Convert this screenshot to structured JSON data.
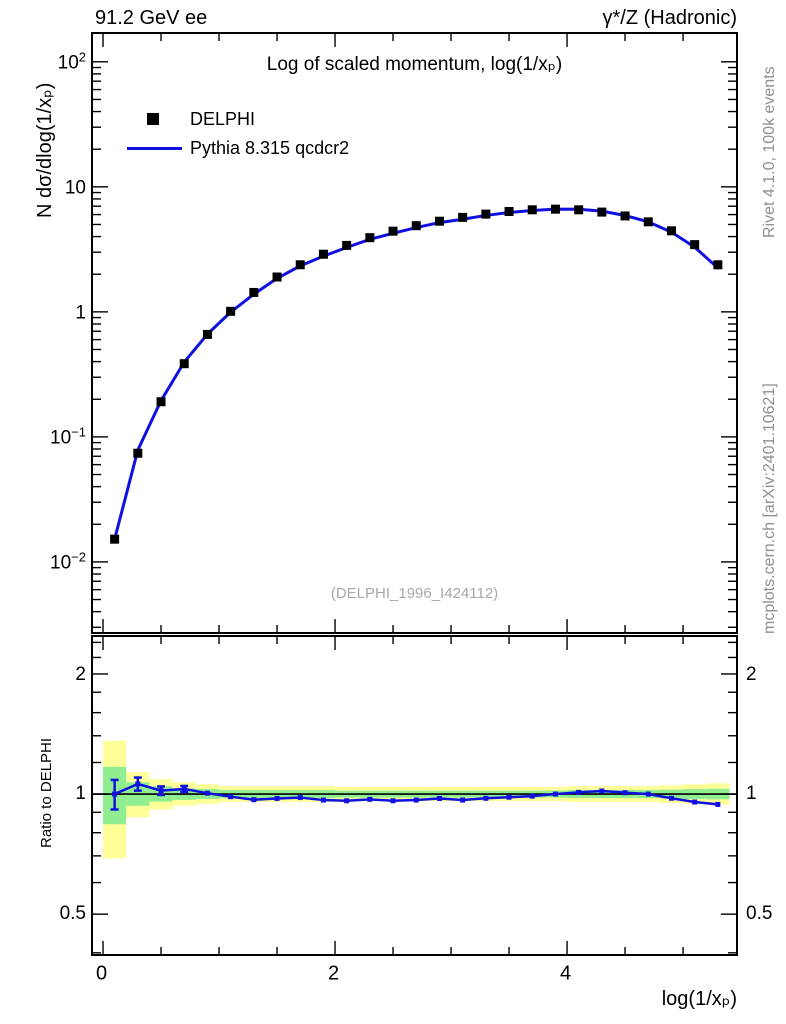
{
  "header": {
    "left": "91.2 GeV ee",
    "right": "γ*/Z (Hadronic)"
  },
  "title": "Log of scaled momentum, log(1/xₚ)",
  "watermark": "(DELPHI_1996_I424112)",
  "sidebar": {
    "top": "Rivet 4.1.0,  100k events",
    "bottom": "mcplots.cern.ch [arXiv:2401.10621]"
  },
  "legend": {
    "items": [
      {
        "label": "DELPHI",
        "style": "marker"
      },
      {
        "label": "Pythia 8.315 qcdcr2",
        "style": "line"
      }
    ]
  },
  "axes": {
    "main_y_label": "N  dσ/dlog(1/xₚ)",
    "main_y_ticks": [
      {
        "base": "10",
        "exp": "2"
      },
      {
        "base": "10",
        "exp": ""
      },
      {
        "base": "1",
        "exp": ""
      },
      {
        "base": "10",
        "exp": "−1"
      },
      {
        "base": "10",
        "exp": "−2"
      }
    ],
    "ratio_y_label": "Ratio to DELPHI",
    "ratio_y_ticks": [
      "2",
      "1",
      "0.5"
    ],
    "x_ticks": [
      "0",
      "2",
      "4"
    ],
    "x_label": "log(1/xₚ)"
  },
  "colors": {
    "model_line": "#1010e0",
    "data_marker": "#000000",
    "band_outer": "#ffff99",
    "band_inner": "#90ee90",
    "frame": "#000000",
    "sidebar_text": "#8f8f8f",
    "watermark_text": "#a8a8a8"
  },
  "chart_data": {
    "type": "line",
    "title": "Log of scaled momentum, log(1/xₚ)",
    "xlabel": "log(1/xₚ)",
    "ylabel": "N dσ/dlog(1/xₚ)",
    "x_range": [
      -0.095,
      5.465
    ],
    "y_range_log": [
      0.0027,
      170
    ],
    "x_major_ticks": [
      0,
      2,
      4
    ],
    "x_minor_ticks": [
      0.5,
      1,
      1.5,
      2.5,
      3,
      3.5,
      4.5,
      5
    ],
    "bin_width": 0.2,
    "x": [
      0.1,
      0.3,
      0.5,
      0.7,
      0.9,
      1.1,
      1.3,
      1.5,
      1.7,
      1.9,
      2.1,
      2.3,
      2.5,
      2.7,
      2.9,
      3.1,
      3.3,
      3.5,
      3.7,
      3.9,
      4.1,
      4.3,
      4.5,
      4.7,
      4.9,
      5.1,
      5.3
    ],
    "series": [
      {
        "name": "DELPHI",
        "style": "squares",
        "color": "#000000",
        "values": [
          0.0152,
          0.074,
          0.191,
          0.385,
          0.66,
          1.01,
          1.43,
          1.9,
          2.38,
          2.89,
          3.4,
          3.92,
          4.42,
          4.89,
          5.31,
          5.7,
          6.05,
          6.35,
          6.55,
          6.63,
          6.55,
          6.28,
          5.85,
          5.25,
          4.45,
          3.45,
          2.38
        ]
      },
      {
        "name": "Pythia 8.315 qcdcr2",
        "style": "line",
        "color": "#1010e0",
        "ratio_to_ref": [
          1.0,
          1.06,
          1.02,
          1.03,
          1.005,
          0.985,
          0.968,
          0.975,
          0.98,
          0.966,
          0.962,
          0.97,
          0.962,
          0.966,
          0.975,
          0.966,
          0.976,
          0.982,
          0.988,
          1.0,
          1.01,
          1.018,
          1.008,
          1.0,
          0.976,
          0.955,
          0.942
        ]
      }
    ],
    "ratio_panel": {
      "ylabel": "Ratio to DELPHI",
      "y_range_log": [
        0.395,
        2.49
      ],
      "major_ticks": [
        0.5,
        1,
        2
      ],
      "minor_ticks": [
        0.4,
        0.6,
        0.7,
        0.8,
        0.9,
        1.2,
        1.4,
        1.6,
        1.8,
        2.2,
        2.4
      ],
      "ratio": [
        1.0,
        1.06,
        1.02,
        1.03,
        1.005,
        0.985,
        0.968,
        0.975,
        0.98,
        0.966,
        0.962,
        0.97,
        0.962,
        0.966,
        0.975,
        0.966,
        0.976,
        0.982,
        0.988,
        1.0,
        1.01,
        1.018,
        1.008,
        1.0,
        0.976,
        0.955,
        0.942
      ],
      "ratio_err": [
        0.085,
        0.04,
        0.025,
        0.018,
        0.012,
        0.01,
        0.008,
        0.007,
        0.006,
        0.006,
        0.005,
        0.005,
        0.005,
        0.005,
        0.005,
        0.005,
        0.005,
        0.005,
        0.005,
        0.005,
        0.005,
        0.006,
        0.006,
        0.007,
        0.008,
        0.009,
        0.012
      ],
      "band_outer": [
        [
          0.69,
          1.36
        ],
        [
          0.875,
          1.135
        ],
        [
          0.915,
          1.09
        ],
        [
          0.935,
          1.07
        ],
        [
          0.945,
          1.058
        ],
        [
          0.955,
          1.047
        ],
        [
          0.955,
          1.047
        ],
        [
          0.955,
          1.047
        ],
        [
          0.955,
          1.047
        ],
        [
          0.955,
          1.047
        ],
        [
          0.96,
          1.042
        ],
        [
          0.96,
          1.042
        ],
        [
          0.96,
          1.042
        ],
        [
          0.96,
          1.042
        ],
        [
          0.96,
          1.042
        ],
        [
          0.96,
          1.042
        ],
        [
          0.96,
          1.042
        ],
        [
          0.96,
          1.042
        ],
        [
          0.96,
          1.042
        ],
        [
          0.96,
          1.042
        ],
        [
          0.955,
          1.047
        ],
        [
          0.955,
          1.047
        ],
        [
          0.955,
          1.047
        ],
        [
          0.955,
          1.047
        ],
        [
          0.95,
          1.052
        ],
        [
          0.945,
          1.058
        ],
        [
          0.94,
          1.064
        ]
      ],
      "band_inner": [
        [
          0.84,
          1.17
        ],
        [
          0.935,
          1.07
        ],
        [
          0.957,
          1.045
        ],
        [
          0.967,
          1.034
        ],
        [
          0.972,
          1.029
        ],
        [
          0.977,
          1.024
        ],
        [
          0.977,
          1.024
        ],
        [
          0.977,
          1.024
        ],
        [
          0.977,
          1.024
        ],
        [
          0.977,
          1.024
        ],
        [
          0.98,
          1.02
        ],
        [
          0.98,
          1.02
        ],
        [
          0.98,
          1.02
        ],
        [
          0.98,
          1.02
        ],
        [
          0.98,
          1.02
        ],
        [
          0.98,
          1.02
        ],
        [
          0.98,
          1.02
        ],
        [
          0.98,
          1.02
        ],
        [
          0.98,
          1.02
        ],
        [
          0.98,
          1.02
        ],
        [
          0.977,
          1.024
        ],
        [
          0.977,
          1.024
        ],
        [
          0.977,
          1.024
        ],
        [
          0.977,
          1.024
        ],
        [
          0.975,
          1.026
        ],
        [
          0.972,
          1.029
        ],
        [
          0.97,
          1.031
        ]
      ]
    }
  }
}
